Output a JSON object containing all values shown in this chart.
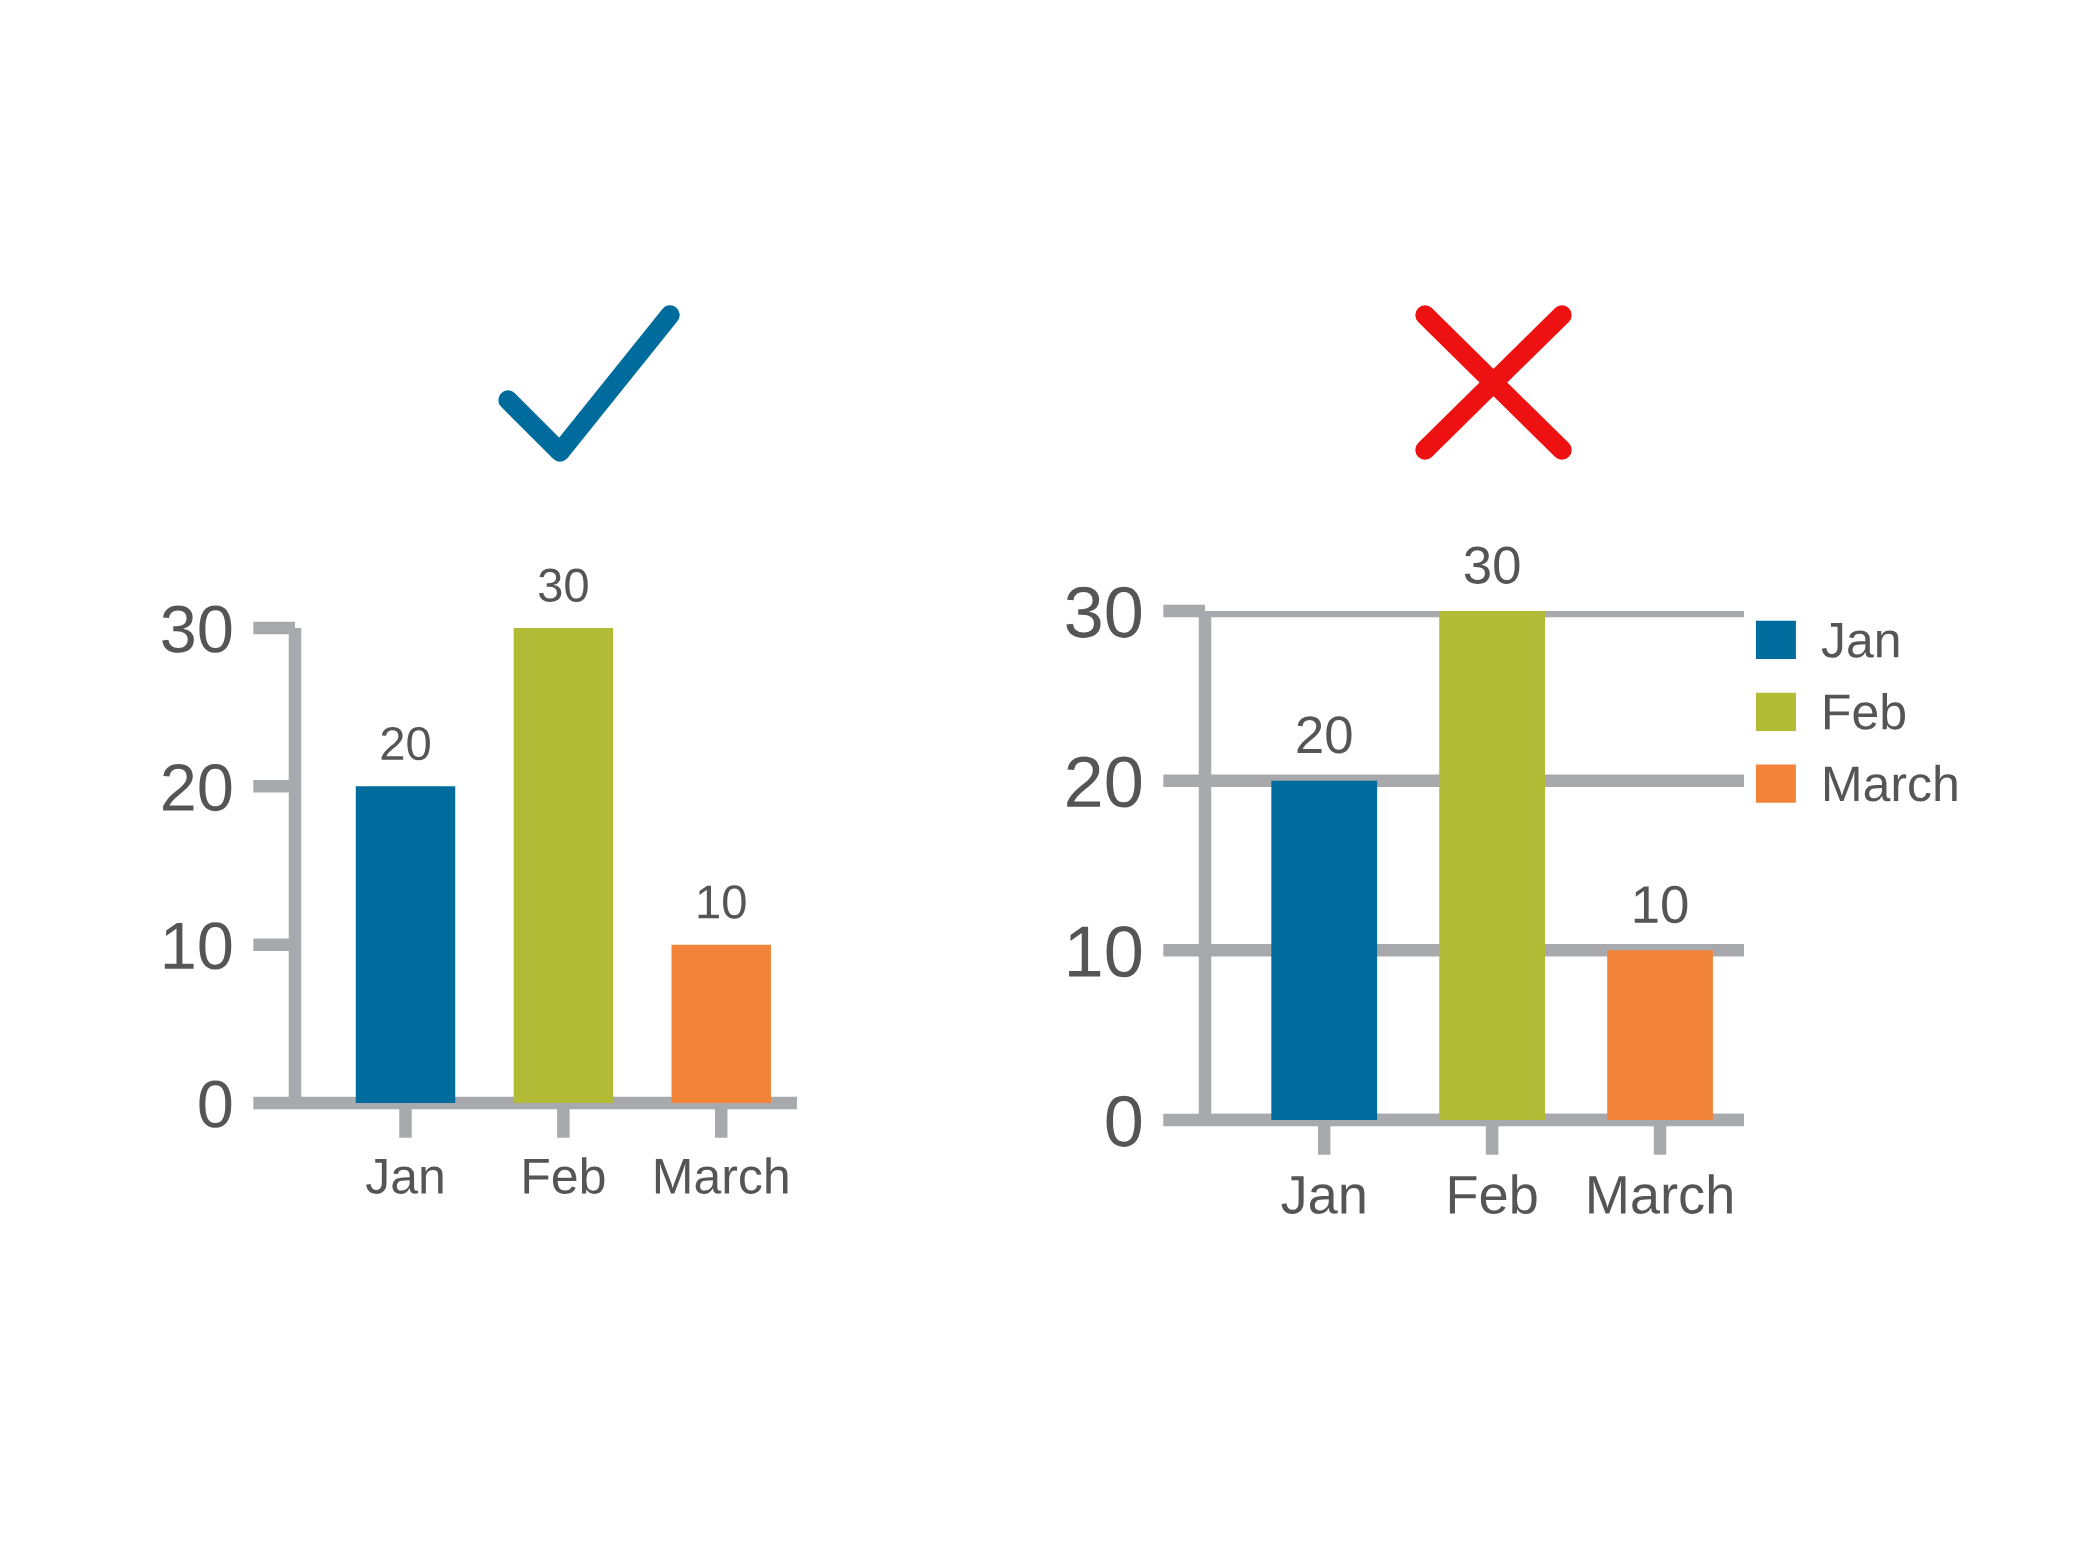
{
  "chart_data": [
    {
      "type": "bar",
      "categories": [
        "Jan",
        "Feb",
        "March"
      ],
      "values": [
        20,
        30,
        10
      ],
      "colors": [
        "#006c9e",
        "#b2bb35",
        "#f2843a"
      ],
      "ylim": [
        0,
        30
      ],
      "yticks": [
        0,
        10,
        20,
        30
      ],
      "data_labels": true,
      "grid": false,
      "legend": false
    },
    {
      "type": "bar",
      "categories": [
        "Jan",
        "Feb",
        "March"
      ],
      "series": [
        {
          "name": "Jan",
          "color": "#006c9e",
          "values": [
            20,
            null,
            null
          ]
        },
        {
          "name": "Feb",
          "color": "#b2bb35",
          "values": [
            null,
            30,
            null
          ]
        },
        {
          "name": "March",
          "color": "#f2843a",
          "values": [
            null,
            null,
            10
          ]
        }
      ],
      "ylim": [
        0,
        30
      ],
      "yticks": [
        0,
        10,
        20,
        30
      ],
      "data_labels": true,
      "grid": "y",
      "legend": "right"
    }
  ]
}
